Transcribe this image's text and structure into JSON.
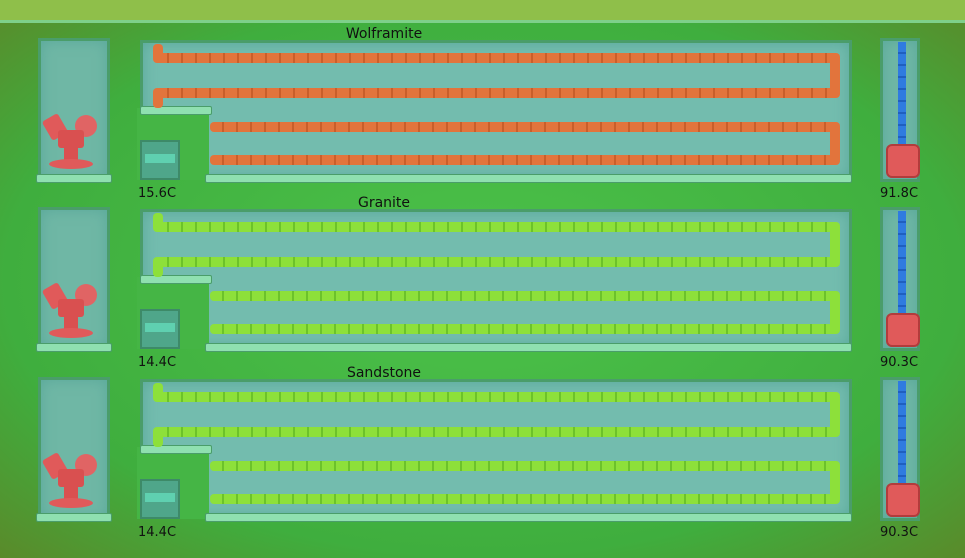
{
  "sections": [
    {
      "title": "Wolframite",
      "inlet_temp": "15.6C",
      "outlet_temp": "91.8C",
      "pipe_color": "#e2743c"
    },
    {
      "title": "Granite",
      "inlet_temp": "14.4C",
      "outlet_temp": "90.3C",
      "pipe_color": "#8de03a"
    },
    {
      "title": "Sandstone",
      "inlet_temp": "14.4C",
      "outlet_temp": "90.3C",
      "pipe_color": "#8de03a"
    }
  ],
  "icons": {
    "pump": "liquid-pump-icon",
    "tank": "liquid-tank-icon",
    "vent": "liquid-vent-icon"
  }
}
